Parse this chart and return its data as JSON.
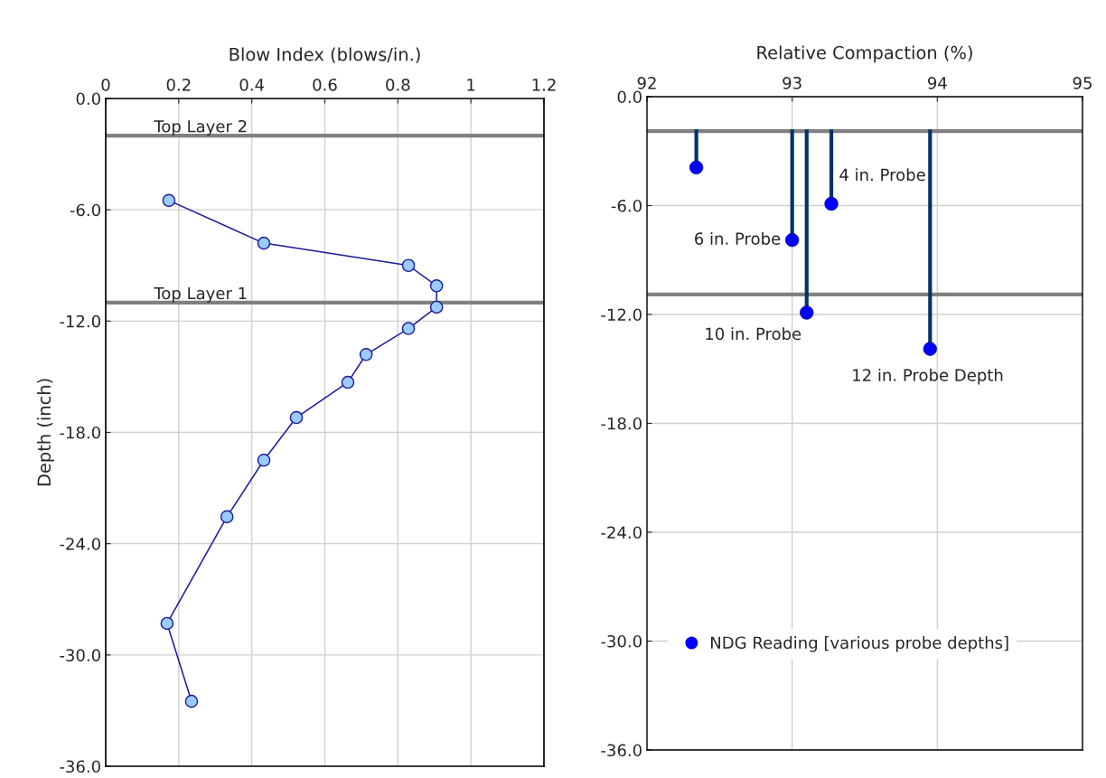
{
  "chart_data": [
    {
      "type": "line",
      "xlabel": "Blow Index (blows/in.)",
      "ylabel": "Depth (inch)",
      "xlim": [
        0,
        1.2
      ],
      "xticks": [
        0,
        0.2,
        0.4,
        0.6,
        0.8,
        1,
        1.2
      ],
      "ylim": [
        -36,
        0
      ],
      "yticks": [
        {
          "value": -36,
          "label": "-36.0"
        },
        {
          "value": -30,
          "label": "-30.0"
        },
        {
          "value": -24,
          "label": "-24.0"
        },
        {
          "value": -18,
          "label": "-18.0"
        },
        {
          "value": -12,
          "label": "-12.0"
        },
        {
          "value": -6,
          "label": "-6.0"
        },
        {
          "value": 0,
          "label": "0.0"
        }
      ],
      "grid": true,
      "marker": "circle",
      "line_style": "solid",
      "series": [
        {
          "color": "#1a1a9c",
          "x": [
            0.173,
            0.433,
            0.829,
            0.906,
            0.906,
            0.829,
            0.713,
            0.663,
            0.522,
            0.433,
            0.332,
            0.168,
            0.235
          ],
          "values": [
            -5.5,
            -7.8,
            -9.0,
            -10.1,
            -11.25,
            -12.4,
            -13.8,
            -15.3,
            -17.2,
            -19.5,
            -22.55,
            -28.3,
            -32.5
          ]
        }
      ],
      "ref_lines": [
        {
          "axis": "y",
          "value": -2,
          "label": "Top Layer 2",
          "color": "#808080"
        },
        {
          "axis": "y",
          "value": -11,
          "label": "Top Layer 1",
          "color": "#808080"
        }
      ]
    },
    {
      "type": "scatter",
      "xlabel": "Relative Compaction (%)",
      "xlim": [
        92,
        95
      ],
      "xticks": [
        92,
        93,
        94,
        95
      ],
      "ylim": [
        -36,
        0
      ],
      "yticks": [
        {
          "value": -36,
          "label": "-36.0"
        },
        {
          "value": -30,
          "label": "-30.0"
        },
        {
          "value": -24,
          "label": "-24.0"
        },
        {
          "value": -18,
          "label": "-18.0"
        },
        {
          "value": -12,
          "label": "-12.0"
        },
        {
          "value": -6,
          "label": "-6.0"
        },
        {
          "value": 0,
          "label": "0.0"
        }
      ],
      "grid": true,
      "marker": "circle",
      "legend": "bottom left",
      "series": [
        {
          "name": "NDG Reading [various probe depths]",
          "color": "#0000ff",
          "x": [
            92.34,
            93.0,
            93.1,
            93.27,
            93.95
          ],
          "values": [
            -3.9,
            -7.9,
            -11.9,
            -5.9,
            -13.9
          ],
          "errors": [
            [
              -3.9,
              -1.8
            ],
            [
              -7.9,
              -1.8
            ],
            [
              -11.9,
              -1.8
            ],
            [
              -5.9,
              -1.8
            ],
            [
              -13.9,
              -1.8
            ]
          ]
        }
      ],
      "ref_lines": [
        {
          "axis": "y",
          "value": -1.9,
          "color": "#808080"
        },
        {
          "axis": "y",
          "value": -10.9,
          "color": "#808080"
        }
      ],
      "annotations": [
        {
          "text": "6 in. Probe",
          "x": 93.0,
          "y": -7.9
        },
        {
          "text": "10 in. Probe",
          "x": 93.1,
          "y": -11.9
        },
        {
          "text": "4 in. Probe",
          "x": 93.27,
          "y": -5.9
        },
        {
          "text": "12 in. Probe Depth",
          "x": 93.95,
          "y": -13.9
        }
      ]
    }
  ]
}
